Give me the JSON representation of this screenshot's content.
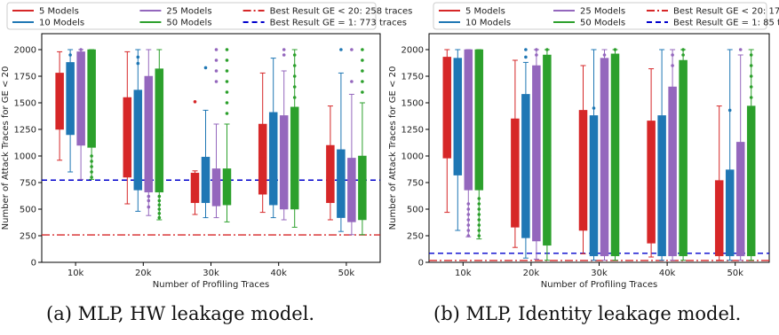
{
  "captions": {
    "a": "(a) MLP, HW leakage model.",
    "b": "(b) MLP, Identity leakage model."
  },
  "chart_data": [
    {
      "type": "box",
      "id": "a",
      "xlabel": "Number of Profiling Traces",
      "ylabel": "Number of Attack Traces for GE < 20",
      "categories": [
        "10k",
        "20k",
        "30k",
        "40k",
        "50k"
      ],
      "ylim": [
        0,
        2150
      ],
      "yticks": [
        0,
        250,
        500,
        750,
        1000,
        1250,
        1500,
        1750,
        2000
      ],
      "legend": {
        "position": "top",
        "entries": [
          {
            "label": "5 Models",
            "color": "#d62728",
            "style": "solid"
          },
          {
            "label": "10 Models",
            "color": "#1f77b4",
            "style": "solid"
          },
          {
            "label": "25 Models",
            "color": "#9467bd",
            "style": "solid"
          },
          {
            "label": "50 Models",
            "color": "#2ca02c",
            "style": "solid"
          },
          {
            "label": "Best Result GE < 20: 258 traces",
            "color": "#d62728",
            "style": "dashdot"
          },
          {
            "label": "Best Result GE = 1: 773 traces",
            "color": "#0000cc",
            "style": "dashed"
          }
        ]
      },
      "reference_lines": [
        {
          "value": 258,
          "color": "#d62728",
          "style": "dashdot"
        },
        {
          "value": 773,
          "color": "#0000cc",
          "style": "dashed"
        }
      ],
      "series": [
        {
          "name": "5 Models",
          "color": "#d62728",
          "boxes": [
            {
              "whislo": 960,
              "q1": 1250,
              "med": 1500,
              "q3": 1780,
              "whishi": 1980,
              "fliers": []
            },
            {
              "whislo": 550,
              "q1": 800,
              "med": 1150,
              "q3": 1550,
              "whishi": 1980,
              "fliers": []
            },
            {
              "whislo": 450,
              "q1": 560,
              "med": 640,
              "q3": 840,
              "whishi": 860,
              "fliers": [
                1510
              ]
            },
            {
              "whislo": 470,
              "q1": 640,
              "med": 980,
              "q3": 1300,
              "whishi": 1780,
              "fliers": []
            },
            {
              "whislo": 400,
              "q1": 560,
              "med": 800,
              "q3": 1100,
              "whishi": 1470,
              "fliers": []
            }
          ]
        },
        {
          "name": "10 Models",
          "color": "#1f77b4",
          "boxes": [
            {
              "whislo": 850,
              "q1": 1200,
              "med": 1450,
              "q3": 1880,
              "whishi": 2000,
              "fliers": [
                1950
              ]
            },
            {
              "whislo": 480,
              "q1": 680,
              "med": 1200,
              "q3": 1620,
              "whishi": 2000,
              "fliers": [
                1870,
                1930
              ]
            },
            {
              "whislo": 420,
              "q1": 560,
              "med": 700,
              "q3": 990,
              "whishi": 1430,
              "fliers": [
                1830
              ]
            },
            {
              "whislo": 420,
              "q1": 540,
              "med": 1000,
              "q3": 1410,
              "whishi": 1920,
              "fliers": []
            },
            {
              "whislo": 290,
              "q1": 420,
              "med": 800,
              "q3": 1060,
              "whishi": 1780,
              "fliers": [
                2000
              ]
            }
          ]
        },
        {
          "name": "25 Models",
          "color": "#9467bd",
          "boxes": [
            {
              "whislo": 780,
              "q1": 1100,
              "med": 1600,
              "q3": 1980,
              "whishi": 2000,
              "fliers": [
                2000
              ]
            },
            {
              "whislo": 440,
              "q1": 660,
              "med": 1250,
              "q3": 1750,
              "whishi": 2000,
              "fliers": [
                520,
                580,
                620
              ]
            },
            {
              "whislo": 420,
              "q1": 530,
              "med": 700,
              "q3": 880,
              "whishi": 1300,
              "fliers": [
                1700,
                1800,
                1900,
                2000
              ]
            },
            {
              "whislo": 400,
              "q1": 500,
              "med": 950,
              "q3": 1380,
              "whishi": 1800,
              "fliers": [
                1950,
                2000
              ]
            },
            {
              "whislo": 260,
              "q1": 380,
              "med": 700,
              "q3": 980,
              "whishi": 1580,
              "fliers": [
                1700,
                2000
              ]
            }
          ]
        },
        {
          "name": "50 Models",
          "color": "#2ca02c",
          "boxes": [
            {
              "whislo": 780,
              "q1": 1080,
              "med": 1550,
              "q3": 2000,
              "whishi": 2000,
              "fliers": [
                800,
                850,
                900,
                950,
                1000
              ]
            },
            {
              "whislo": 400,
              "q1": 660,
              "med": 1200,
              "q3": 1820,
              "whishi": 2000,
              "fliers": [
                420,
                460,
                500,
                540,
                580,
                620
              ]
            },
            {
              "whislo": 380,
              "q1": 540,
              "med": 700,
              "q3": 880,
              "whishi": 1300,
              "fliers": [
                1400,
                1500,
                1600,
                1700,
                1800,
                1900,
                2000
              ]
            },
            {
              "whislo": 330,
              "q1": 500,
              "med": 1000,
              "q3": 1460,
              "whishi": 2000,
              "fliers": [
                1550,
                1650,
                1750,
                1850,
                1950
              ]
            },
            {
              "whislo": 260,
              "q1": 400,
              "med": 650,
              "q3": 1000,
              "whishi": 1500,
              "fliers": [
                1600,
                1700,
                1800,
                1900,
                2000
              ]
            }
          ]
        }
      ]
    },
    {
      "type": "box",
      "id": "b",
      "xlabel": "Number of Profiling Traces",
      "ylabel": "Number of Attack Traces for GE < 20",
      "categories": [
        "10k",
        "20k",
        "30k",
        "40k",
        "50k"
      ],
      "ylim": [
        0,
        2150
      ],
      "yticks": [
        0,
        250,
        500,
        750,
        1000,
        1250,
        1500,
        1750,
        2000
      ],
      "legend": {
        "position": "top",
        "entries": [
          {
            "label": "5 Models",
            "color": "#d62728",
            "style": "solid"
          },
          {
            "label": "10 Models",
            "color": "#1f77b4",
            "style": "solid"
          },
          {
            "label": "25 Models",
            "color": "#9467bd",
            "style": "solid"
          },
          {
            "label": "50 Models",
            "color": "#2ca02c",
            "style": "solid"
          },
          {
            "label": "Best Result GE < 20: 17 traces",
            "color": "#d62728",
            "style": "dashdot"
          },
          {
            "label": "Best Result GE = 1: 85 traces",
            "color": "#0000cc",
            "style": "dashed"
          }
        ]
      },
      "reference_lines": [
        {
          "value": 17,
          "color": "#d62728",
          "style": "dashdot"
        },
        {
          "value": 85,
          "color": "#0000cc",
          "style": "dashed"
        }
      ],
      "series": [
        {
          "name": "5 Models",
          "color": "#d62728",
          "boxes": [
            {
              "whislo": 470,
              "q1": 980,
              "med": 1600,
              "q3": 1930,
              "whishi": 2000,
              "fliers": []
            },
            {
              "whislo": 140,
              "q1": 330,
              "med": 900,
              "q3": 1350,
              "whishi": 1900,
              "fliers": []
            },
            {
              "whislo": 80,
              "q1": 300,
              "med": 800,
              "q3": 1430,
              "whishi": 1850,
              "fliers": []
            },
            {
              "whislo": 50,
              "q1": 180,
              "med": 700,
              "q3": 1330,
              "whishi": 1820,
              "fliers": []
            },
            {
              "whislo": 20,
              "q1": 60,
              "med": 400,
              "q3": 770,
              "whishi": 1470,
              "fliers": []
            }
          ]
        },
        {
          "name": "10 Models",
          "color": "#1f77b4",
          "boxes": [
            {
              "whislo": 300,
              "q1": 820,
              "med": 1400,
              "q3": 1920,
              "whishi": 2000,
              "fliers": []
            },
            {
              "whislo": 40,
              "q1": 230,
              "med": 800,
              "q3": 1580,
              "whishi": 1880,
              "fliers": [
                1930,
                2000
              ]
            },
            {
              "whislo": 20,
              "q1": 60,
              "med": 600,
              "q3": 1380,
              "whishi": 2000,
              "fliers": [
                1450
              ]
            },
            {
              "whislo": 20,
              "q1": 60,
              "med": 600,
              "q3": 1380,
              "whishi": 2000,
              "fliers": []
            },
            {
              "whislo": 20,
              "q1": 60,
              "med": 400,
              "q3": 870,
              "whishi": 2000,
              "fliers": [
                1430
              ]
            }
          ]
        },
        {
          "name": "25 Models",
          "color": "#9467bd",
          "boxes": [
            {
              "whislo": 240,
              "q1": 680,
              "med": 1400,
              "q3": 2000,
              "whishi": 2000,
              "fliers": [
                250,
                300,
                350,
                400,
                450,
                500,
                550
              ]
            },
            {
              "whislo": 30,
              "q1": 200,
              "med": 1000,
              "q3": 1850,
              "whishi": 2000,
              "fliers": [
                1950,
                2000
              ]
            },
            {
              "whislo": 20,
              "q1": 60,
              "med": 900,
              "q3": 1920,
              "whishi": 2000,
              "fliers": [
                1950
              ]
            },
            {
              "whislo": 20,
              "q1": 60,
              "med": 800,
              "q3": 1650,
              "whishi": 2000,
              "fliers": [
                1850,
                1950
              ]
            },
            {
              "whislo": 20,
              "q1": 60,
              "med": 500,
              "q3": 1130,
              "whishi": 1950,
              "fliers": [
                2000
              ]
            }
          ]
        },
        {
          "name": "50 Models",
          "color": "#2ca02c",
          "boxes": [
            {
              "whislo": 220,
              "q1": 680,
              "med": 1400,
              "q3": 2000,
              "whishi": 2000,
              "fliers": [
                250,
                300,
                350,
                400,
                450,
                500,
                550,
                600
              ]
            },
            {
              "whislo": 20,
              "q1": 160,
              "med": 1000,
              "q3": 1950,
              "whishi": 2000,
              "fliers": [
                2000
              ]
            },
            {
              "whislo": 20,
              "q1": 60,
              "med": 1000,
              "q3": 1960,
              "whishi": 2000,
              "fliers": [
                2000
              ]
            },
            {
              "whislo": 20,
              "q1": 60,
              "med": 900,
              "q3": 1900,
              "whishi": 2000,
              "fliers": [
                1950,
                2000
              ]
            },
            {
              "whislo": 20,
              "q1": 60,
              "med": 700,
              "q3": 1470,
              "whishi": 2000,
              "fliers": [
                1550,
                1650,
                1750,
                1850,
                1950
              ]
            }
          ]
        }
      ]
    }
  ]
}
